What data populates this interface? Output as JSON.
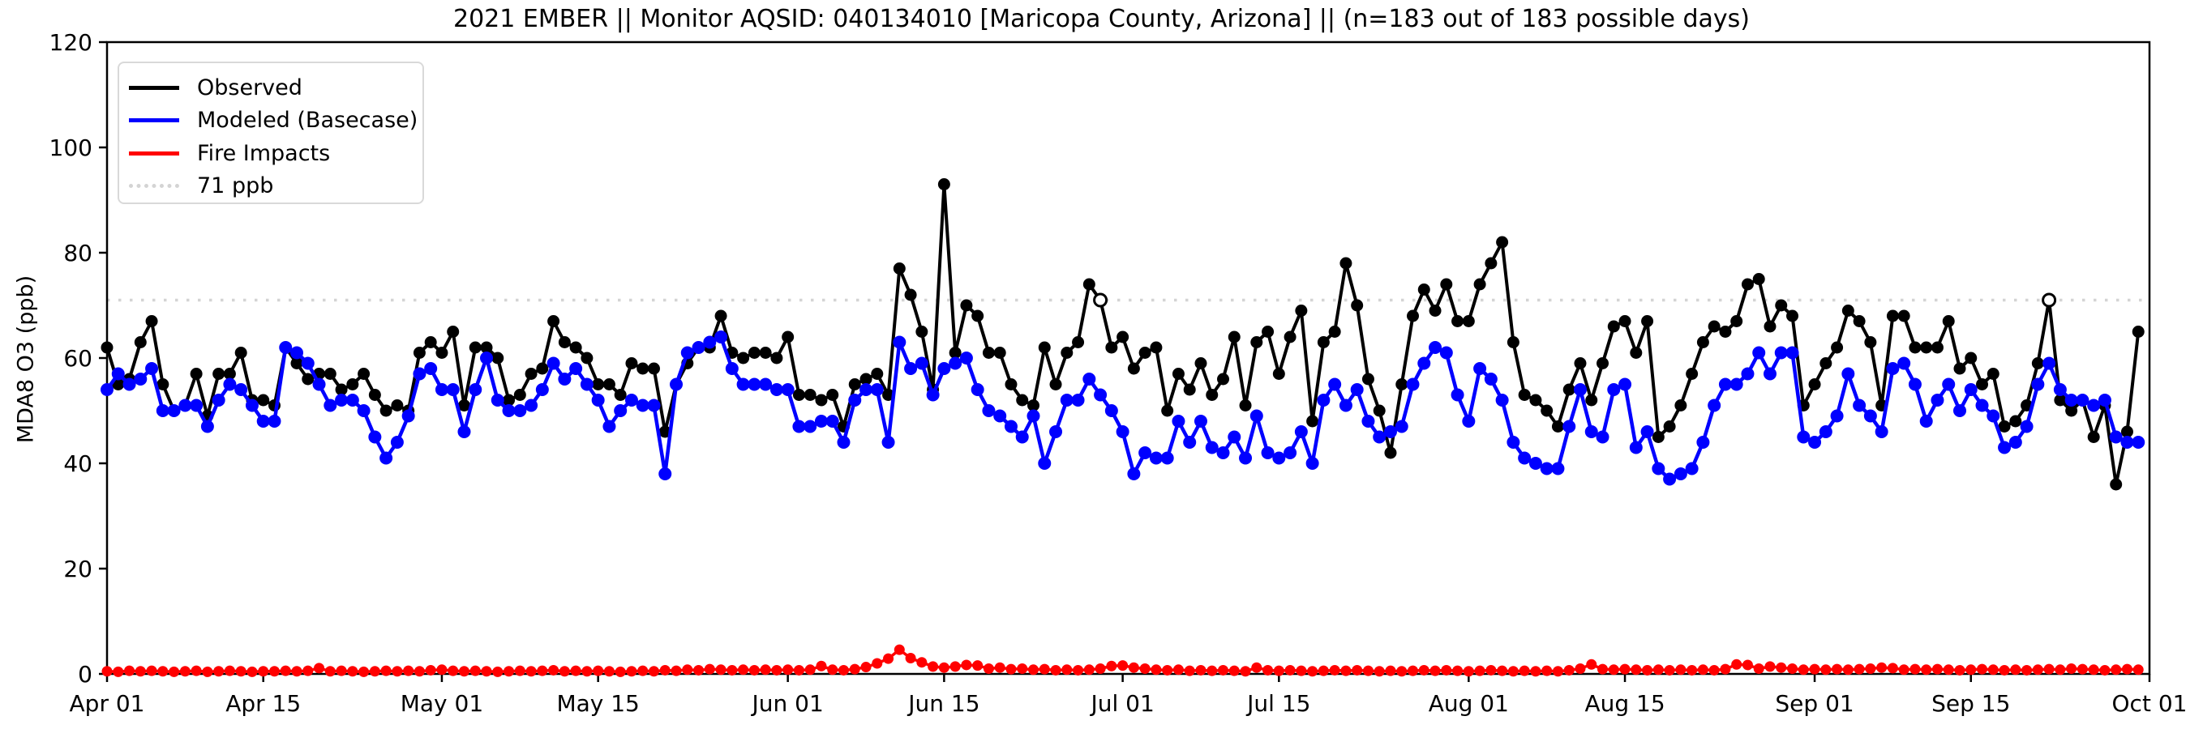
{
  "title": "2021 EMBER || Monitor AQSID: 040134010 [Maricopa County, Arizona] || (n=183 out of 183 possible days)",
  "axes": {
    "ylabel": "MDA8 O3 (ppb)",
    "ylim": [
      0,
      120
    ],
    "yticks": [
      0,
      20,
      40,
      60,
      80,
      100,
      120
    ],
    "xticks": [
      {
        "label": "Apr 01",
        "day": 0
      },
      {
        "label": "Apr 15",
        "day": 14
      },
      {
        "label": "May 01",
        "day": 30
      },
      {
        "label": "May 15",
        "day": 44
      },
      {
        "label": "Jun 01",
        "day": 61
      },
      {
        "label": "Jun 15",
        "day": 75
      },
      {
        "label": "Jul 01",
        "day": 91
      },
      {
        "label": "Jul 15",
        "day": 105
      },
      {
        "label": "Aug 01",
        "day": 122
      },
      {
        "label": "Aug 15",
        "day": 136
      },
      {
        "label": "Sep 01",
        "day": 153
      },
      {
        "label": "Sep 15",
        "day": 167
      },
      {
        "label": "Oct 01",
        "day": 183
      }
    ],
    "grid": "off",
    "legend_position": "upper-left"
  },
  "legend": {
    "items": [
      {
        "label": "Observed",
        "color": "#000000",
        "style": "solid"
      },
      {
        "label": "Modeled (Basecase)",
        "color": "#0000ff",
        "style": "solid"
      },
      {
        "label": "Fire Impacts",
        "color": "#ff0000",
        "style": "solid"
      },
      {
        "label": "71 ppb",
        "color": "#d4d4d4",
        "style": "dotted"
      }
    ]
  },
  "threshold": {
    "value": 71,
    "label": "71 ppb",
    "color": "#d4d4d4"
  },
  "chart_data": {
    "type": "line",
    "title": "2021 EMBER || Monitor AQSID: 040134010 [Maricopa County, Arizona] || (n=183 out of 183 possible days)",
    "xlabel": "",
    "ylabel": "MDA8 O3 (ppb)",
    "x_unit": "day index from Apr 01 2021 (183 daily values, Apr 01 - Sep 30)",
    "n_days": 183,
    "threshold_ppb": 71,
    "series": [
      {
        "name": "Observed",
        "color": "#000000",
        "values": [
          62,
          55,
          56,
          63,
          67,
          55,
          50,
          51,
          57,
          49,
          57,
          57,
          61,
          52,
          52,
          51,
          62,
          59,
          56,
          57,
          57,
          54,
          55,
          57,
          53,
          50,
          51,
          50,
          61,
          63,
          61,
          65,
          51,
          62,
          62,
          60,
          52,
          53,
          57,
          58,
          67,
          63,
          62,
          60,
          55,
          55,
          53,
          59,
          58,
          58,
          46,
          55,
          59,
          62,
          62,
          68,
          61,
          60,
          61,
          61,
          60,
          64,
          53,
          53,
          52,
          53,
          47,
          55,
          56,
          57,
          53,
          77,
          72,
          65,
          54,
          93,
          61,
          70,
          68,
          61,
          61,
          55,
          52,
          51,
          62,
          55,
          61,
          63,
          74,
          71,
          62,
          64,
          58,
          61,
          62,
          50,
          57,
          54,
          59,
          53,
          56,
          64,
          51,
          63,
          65,
          57,
          64,
          69,
          48,
          63,
          65,
          78,
          70,
          56,
          50,
          42,
          55,
          68,
          73,
          69,
          74,
          67,
          67,
          74,
          78,
          82,
          63,
          53,
          52,
          50,
          47,
          54,
          59,
          52,
          59,
          66,
          67,
          61,
          67,
          45,
          47,
          51,
          57,
          63,
          66,
          65,
          67,
          74,
          75,
          66,
          70,
          68,
          51,
          55,
          59,
          62,
          69,
          67,
          63,
          51,
          68,
          68,
          62,
          62,
          62,
          67,
          58,
          60,
          55,
          57,
          47,
          48,
          51,
          59,
          71,
          52,
          50,
          52,
          45,
          51,
          36,
          46,
          65
        ]
      },
      {
        "name": "Modeled (Basecase)",
        "color": "#0000ff",
        "values": [
          54,
          57,
          55,
          56,
          58,
          50,
          50,
          51,
          51,
          47,
          52,
          55,
          54,
          51,
          48,
          48,
          62,
          61,
          59,
          55,
          51,
          52,
          52,
          50,
          45,
          41,
          44,
          49,
          57,
          58,
          54,
          54,
          46,
          54,
          60,
          52,
          50,
          50,
          51,
          54,
          59,
          56,
          58,
          55,
          52,
          47,
          50,
          52,
          51,
          51,
          38,
          55,
          61,
          62,
          63,
          64,
          58,
          55,
          55,
          55,
          54,
          54,
          47,
          47,
          48,
          48,
          44,
          52,
          54,
          54,
          44,
          63,
          58,
          59,
          53,
          58,
          59,
          60,
          54,
          50,
          49,
          47,
          45,
          49,
          40,
          46,
          52,
          52,
          56,
          53,
          50,
          46,
          38,
          42,
          41,
          41,
          48,
          44,
          48,
          43,
          42,
          45,
          41,
          49,
          42,
          41,
          42,
          46,
          40,
          52,
          55,
          51,
          54,
          48,
          45,
          46,
          47,
          55,
          59,
          62,
          61,
          53,
          48,
          58,
          56,
          52,
          44,
          41,
          40,
          39,
          39,
          47,
          54,
          46,
          45,
          54,
          55,
          43,
          46,
          39,
          37,
          38,
          39,
          44,
          51,
          55,
          55,
          57,
          61,
          57,
          61,
          61,
          45,
          44,
          46,
          49,
          57,
          51,
          49,
          46,
          58,
          59,
          55,
          48,
          52,
          55,
          50,
          54,
          51,
          49,
          43,
          44,
          47,
          55,
          59,
          54,
          52,
          52,
          51,
          52,
          45,
          44,
          44
        ]
      },
      {
        "name": "Fire Impacts",
        "color": "#ff0000",
        "values": [
          0.5,
          0.4,
          0.6,
          0.5,
          0.6,
          0.5,
          0.4,
          0.5,
          0.6,
          0.4,
          0.5,
          0.6,
          0.5,
          0.4,
          0.5,
          0.5,
          0.6,
          0.5,
          0.6,
          1.1,
          0.5,
          0.6,
          0.5,
          0.4,
          0.5,
          0.6,
          0.5,
          0.6,
          0.5,
          0.7,
          0.8,
          0.6,
          0.5,
          0.6,
          0.5,
          0.4,
          0.5,
          0.6,
          0.5,
          0.6,
          0.7,
          0.5,
          0.6,
          0.5,
          0.6,
          0.5,
          0.4,
          0.5,
          0.6,
          0.5,
          0.7,
          0.6,
          0.8,
          0.7,
          0.9,
          0.8,
          0.7,
          0.8,
          0.7,
          0.8,
          0.7,
          0.8,
          0.7,
          0.8,
          1.5,
          0.8,
          0.7,
          0.9,
          1.3,
          2.0,
          2.9,
          4.6,
          3.0,
          2.2,
          1.4,
          1.2,
          1.4,
          1.7,
          1.6,
          1.0,
          1.2,
          0.9,
          1.0,
          0.8,
          0.9,
          0.7,
          0.8,
          0.7,
          0.8,
          1.0,
          1.5,
          1.6,
          1.2,
          1.0,
          0.8,
          0.7,
          0.8,
          0.6,
          0.7,
          0.6,
          0.7,
          0.6,
          0.5,
          1.2,
          0.7,
          0.6,
          0.7,
          0.6,
          0.5,
          0.6,
          0.7,
          0.6,
          0.7,
          0.6,
          0.5,
          0.6,
          0.5,
          0.6,
          0.7,
          0.6,
          0.7,
          0.6,
          0.5,
          0.6,
          0.7,
          0.6,
          0.5,
          0.6,
          0.5,
          0.6,
          0.5,
          0.7,
          1.0,
          1.8,
          0.9,
          0.8,
          0.9,
          0.8,
          0.7,
          0.8,
          0.7,
          0.8,
          0.7,
          0.8,
          0.7,
          0.9,
          1.8,
          1.7,
          1.0,
          1.4,
          1.2,
          1.0,
          0.8,
          0.9,
          0.8,
          0.9,
          0.8,
          0.9,
          1.0,
          1.2,
          1.1,
          0.8,
          0.9,
          0.8,
          0.9,
          0.8,
          0.7,
          0.8,
          0.9,
          0.8,
          0.7,
          0.8,
          0.7,
          0.8,
          0.9,
          0.8,
          1.0,
          0.9,
          0.8,
          0.7,
          0.8,
          0.9,
          0.8
        ]
      }
    ]
  }
}
